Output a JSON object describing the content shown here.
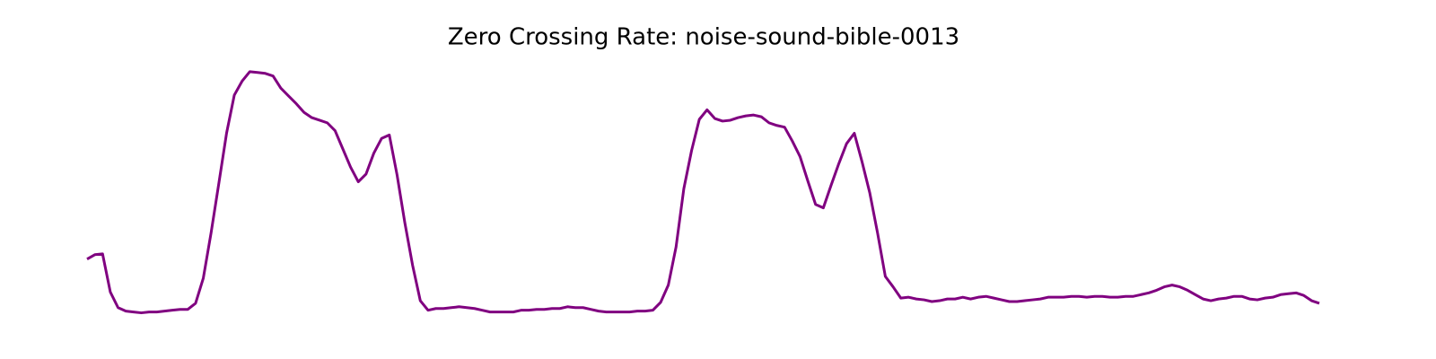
{
  "chart_data": {
    "type": "line",
    "title": "Zero Crossing Rate: noise-sound-bible-0013",
    "color": "#800080",
    "ylim": [
      0,
      0.3
    ],
    "values": [
      0.079,
      0.084,
      0.085,
      0.041,
      0.023,
      0.019,
      0.018,
      0.017,
      0.018,
      0.018,
      0.019,
      0.02,
      0.021,
      0.021,
      0.028,
      0.057,
      0.109,
      0.166,
      0.224,
      0.268,
      0.284,
      0.295,
      0.294,
      0.293,
      0.29,
      0.276,
      0.267,
      0.258,
      0.248,
      0.242,
      0.239,
      0.236,
      0.227,
      0.206,
      0.185,
      0.168,
      0.177,
      0.201,
      0.218,
      0.222,
      0.176,
      0.121,
      0.072,
      0.031,
      0.02,
      0.022,
      0.022,
      0.023,
      0.024,
      0.023,
      0.022,
      0.02,
      0.018,
      0.018,
      0.018,
      0.018,
      0.02,
      0.02,
      0.021,
      0.021,
      0.022,
      0.022,
      0.024,
      0.023,
      0.023,
      0.021,
      0.019,
      0.018,
      0.018,
      0.018,
      0.018,
      0.019,
      0.019,
      0.02,
      0.029,
      0.049,
      0.093,
      0.16,
      0.204,
      0.24,
      0.251,
      0.241,
      0.238,
      0.239,
      0.242,
      0.244,
      0.245,
      0.243,
      0.236,
      0.233,
      0.231,
      0.215,
      0.197,
      0.169,
      0.142,
      0.138,
      0.164,
      0.189,
      0.212,
      0.224,
      0.191,
      0.155,
      0.109,
      0.059,
      0.047,
      0.034,
      0.035,
      0.033,
      0.032,
      0.03,
      0.031,
      0.033,
      0.033,
      0.035,
      0.033,
      0.035,
      0.036,
      0.034,
      0.032,
      0.03,
      0.03,
      0.031,
      0.032,
      0.033,
      0.035,
      0.035,
      0.035,
      0.036,
      0.036,
      0.035,
      0.036,
      0.036,
      0.035,
      0.035,
      0.036,
      0.036,
      0.038,
      0.04,
      0.043,
      0.047,
      0.049,
      0.047,
      0.043,
      0.038,
      0.033,
      0.031,
      0.033,
      0.034,
      0.036,
      0.036,
      0.033,
      0.032,
      0.034,
      0.035,
      0.038,
      0.039,
      0.04,
      0.037,
      0.031,
      0.028
    ]
  }
}
